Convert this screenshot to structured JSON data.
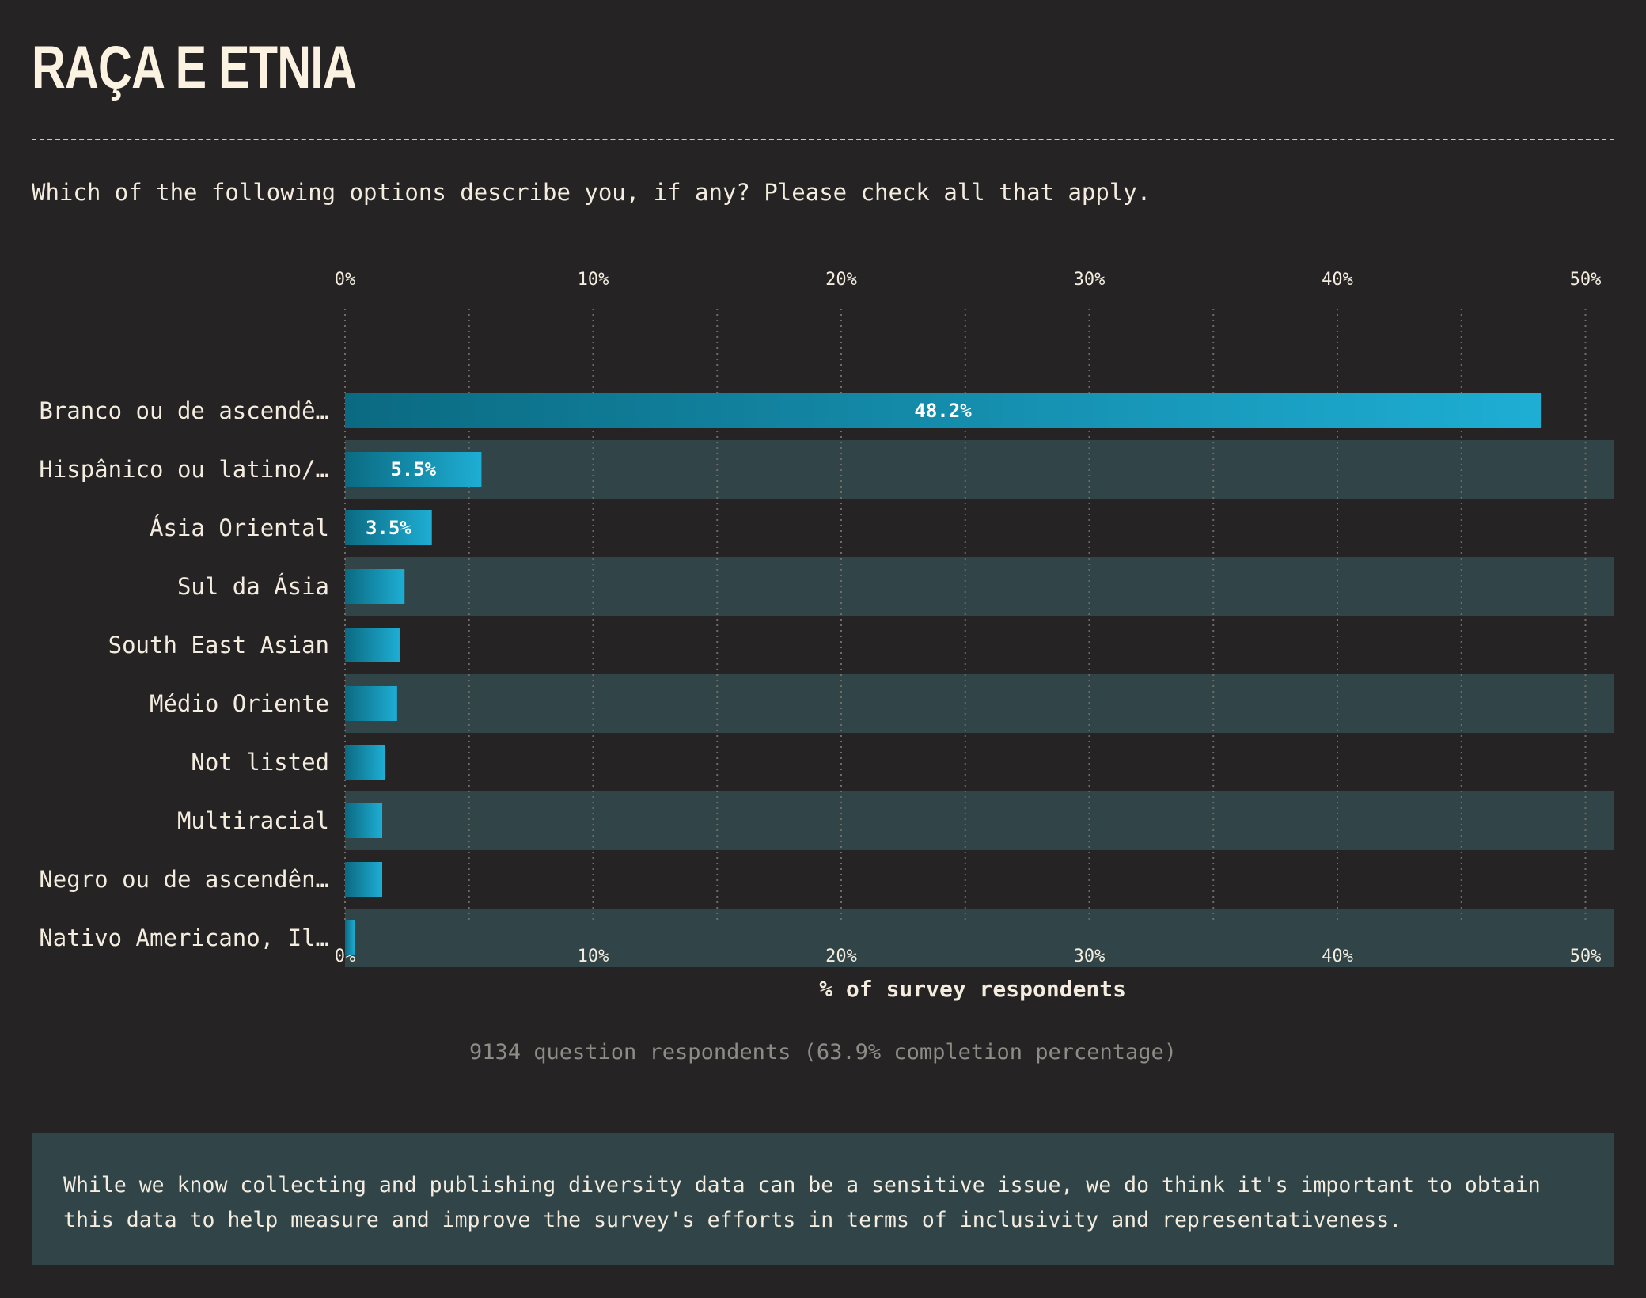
{
  "header": {
    "title": "RAÇA E ETNIA",
    "question": "Which of the following options describe you, if any? Please check all that apply."
  },
  "chart_data": {
    "type": "bar",
    "orientation": "horizontal",
    "categories": [
      "Branco ou de ascendê…",
      "Hispânico ou latino/…",
      "Ásia Oriental",
      "Sul da Ásia",
      "South East Asian",
      "Médio Oriente",
      "Not listed",
      "Multiracial",
      "Negro ou de ascendên…",
      "Nativo Americano, Il…"
    ],
    "values": [
      48.2,
      5.5,
      3.5,
      2.4,
      2.2,
      2.1,
      1.6,
      1.5,
      1.5,
      0.4
    ],
    "data_labels": [
      "48.2%",
      "5.5%",
      "3.5%",
      "",
      "",
      "",
      "",
      "",
      "",
      ""
    ],
    "xlabel": "% of survey respondents",
    "xlim": [
      0,
      51.3
    ],
    "xticks": [
      0,
      10,
      20,
      30,
      40,
      50
    ],
    "xtick_labels": [
      "0%",
      "10%",
      "20%",
      "30%",
      "40%",
      "50%"
    ],
    "grid": "vertical dotted",
    "row_banding": true,
    "colors": {
      "bar_start": "#0b6a82",
      "bar_end": "#1eaed4",
      "band": "#314448",
      "grid": "#6e6b68",
      "text": "#f3ecdf"
    }
  },
  "footer": {
    "respondents": "9134 question respondents (63.9% completion percentage)",
    "note": "While we know collecting and publishing diversity data can be a sensitive issue, we do think it's important to obtain this data to help measure and improve the survey's efforts in terms of inclusivity and representativeness."
  }
}
